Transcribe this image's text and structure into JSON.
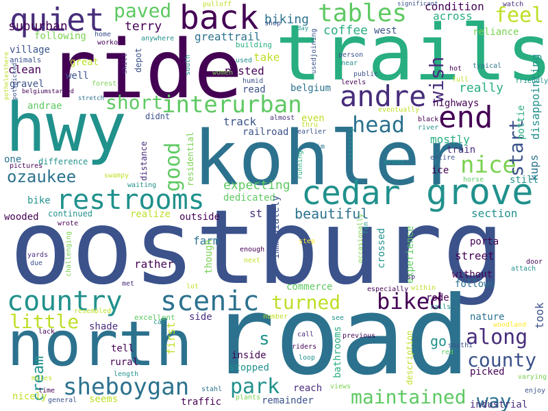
{
  "palette": {
    "c1": "#440154",
    "c2": "#3b528b",
    "c3": "#21918c",
    "c4": "#5ec962",
    "c5": "#2c728e",
    "c6": "#7ad151",
    "c7": "#bddf26",
    "c8": "#28ae80",
    "c9": "#472d7b",
    "c10": "#fde725"
  },
  "words": [
    {
      "text": "oostburg",
      "color": "#3b528b"
    },
    {
      "text": "road",
      "color": "#2c728e"
    },
    {
      "text": "kohler",
      "color": "#2c728e"
    },
    {
      "text": "ride",
      "color": "#440154"
    },
    {
      "text": "trails",
      "color": "#28ae80"
    },
    {
      "text": "hwy",
      "color": "#21918c"
    },
    {
      "text": "north",
      "color": "#2c728e"
    },
    {
      "text": "cedar",
      "color": "#21918c"
    },
    {
      "text": "grove",
      "color": "#21918c"
    },
    {
      "text": "back",
      "color": "#440154"
    },
    {
      "text": "quiet",
      "color": "#472d7b"
    },
    {
      "text": "restrooms",
      "color": "#21918c"
    },
    {
      "text": "scenic",
      "color": "#2c728e"
    },
    {
      "text": "country",
      "color": "#21918c"
    },
    {
      "text": "andre",
      "color": "#472d7b"
    },
    {
      "text": "end",
      "color": "#440154"
    },
    {
      "text": "tables",
      "color": "#5ec962"
    },
    {
      "text": "interurban",
      "color": "#5ec962"
    },
    {
      "text": "sheboygan",
      "color": "#2c728e"
    },
    {
      "text": "park",
      "color": "#21918c"
    },
    {
      "text": "maintained",
      "color": "#5ec962"
    },
    {
      "text": "along",
      "color": "#472d7b"
    },
    {
      "text": "county",
      "color": "#3b528b"
    },
    {
      "text": "head",
      "color": "#2c728e"
    },
    {
      "text": "nice",
      "color": "#7ad151"
    },
    {
      "text": "biked",
      "color": "#440154"
    },
    {
      "text": "turned",
      "color": "#bddf26"
    },
    {
      "text": "little",
      "color": "#bddf26"
    },
    {
      "text": "short",
      "color": "#5ec962"
    },
    {
      "text": "good",
      "color": "#5ec962"
    },
    {
      "text": "start",
      "color": "#3b528b"
    },
    {
      "text": "wish",
      "color": "#472d7b"
    },
    {
      "text": "feel",
      "color": "#bddf26"
    },
    {
      "text": "paved",
      "color": "#5ec962"
    },
    {
      "text": "way",
      "color": "#2c728e"
    },
    {
      "text": "s",
      "color": "#21918c"
    },
    {
      "text": "ozaukee",
      "color": "#2c728e"
    },
    {
      "text": "cream",
      "color": "#21918c"
    },
    {
      "text": "beautiful",
      "color": "#2c728e"
    },
    {
      "text": "expecting",
      "color": "#5ec962"
    },
    {
      "text": "took",
      "color": "#3b528b"
    },
    {
      "text": "go",
      "color": "#21918c"
    },
    {
      "text": "suburban",
      "color": "#440154"
    },
    {
      "text": "terry",
      "color": "#440154"
    },
    {
      "text": "biking",
      "color": "#2c728e"
    },
    {
      "text": "coffee",
      "color": "#28ae80"
    },
    {
      "text": "condition",
      "color": "#440154"
    },
    {
      "text": "across",
      "color": "#28ae80"
    },
    {
      "text": "greattrail",
      "color": "#2c728e"
    },
    {
      "text": "west",
      "color": "#3b528b"
    },
    {
      "text": "reliance",
      "color": "#7ad151"
    },
    {
      "text": "following",
      "color": "#7ad151"
    },
    {
      "text": "village",
      "color": "#3b528b"
    },
    {
      "text": "clean",
      "color": "#440154"
    },
    {
      "text": "gravel",
      "color": "#3b528b"
    },
    {
      "text": "great",
      "color": "#bddf26"
    },
    {
      "text": "well",
      "color": "#3b528b"
    },
    {
      "text": "posted",
      "color": "#440154"
    },
    {
      "text": "take",
      "color": "#bddf26"
    },
    {
      "text": "read",
      "color": "#3b528b"
    },
    {
      "text": "belgium",
      "color": "#2c728e"
    },
    {
      "text": "really",
      "color": "#28ae80"
    },
    {
      "text": "highways",
      "color": "#440154"
    },
    {
      "text": "disappointing",
      "color": "#21918c"
    },
    {
      "text": "andrae",
      "color": "#5ec962"
    },
    {
      "text": "track",
      "color": "#3b528b"
    },
    {
      "text": "railroad",
      "color": "#3b528b"
    },
    {
      "text": "even",
      "color": "#bddf26"
    },
    {
      "text": "mostly",
      "color": "#28ae80"
    },
    {
      "text": "train",
      "color": "#472d7b"
    },
    {
      "text": "kups",
      "color": "#2c728e"
    },
    {
      "text": "pottie",
      "color": "#28ae80"
    },
    {
      "text": "one",
      "color": "#2c728e"
    },
    {
      "text": "difference",
      "color": "#21918c"
    },
    {
      "text": "didnt",
      "color": "#3b528b"
    },
    {
      "text": "distance",
      "color": "#472d7b"
    },
    {
      "text": "residential",
      "color": "#7ad151"
    },
    {
      "text": "ice",
      "color": "#440154"
    },
    {
      "text": "still",
      "color": "#21918c"
    },
    {
      "text": "bike",
      "color": "#21918c"
    },
    {
      "text": "dedicated",
      "color": "#5ec962"
    },
    {
      "text": "realize",
      "color": "#bddf26"
    },
    {
      "text": "section",
      "color": "#21918c"
    },
    {
      "text": "wooded",
      "color": "#440154"
    },
    {
      "text": "continued",
      "color": "#21918c"
    },
    {
      "text": "outside",
      "color": "#440154"
    },
    {
      "text": "st",
      "color": "#472d7b"
    },
    {
      "text": "immediately",
      "color": "#3b528b"
    },
    {
      "text": "crossed",
      "color": "#21918c"
    },
    {
      "text": "experience",
      "color": "#5ec962"
    },
    {
      "text": "porta",
      "color": "#440154"
    },
    {
      "text": "street",
      "color": "#440154"
    },
    {
      "text": "farm",
      "color": "#2c728e"
    },
    {
      "text": "rather",
      "color": "#440154"
    },
    {
      "text": "though",
      "color": "#7ad151"
    },
    {
      "text": "commerce",
      "color": "#5ec962"
    },
    {
      "text": "without",
      "color": "#440154"
    },
    {
      "text": "follows",
      "color": "#2c728e"
    },
    {
      "text": "rode",
      "color": "#440154"
    },
    {
      "text": "nature",
      "color": "#2c728e"
    },
    {
      "text": "shade",
      "color": "#472d7b"
    },
    {
      "text": "side",
      "color": "#472d7b"
    },
    {
      "text": "first",
      "color": "#bddf26"
    },
    {
      "text": "tell",
      "color": "#440154"
    },
    {
      "text": "rural",
      "color": "#440154"
    },
    {
      "text": "inside",
      "color": "#440154"
    },
    {
      "text": "stopped",
      "color": "#21918c"
    },
    {
      "text": "bathrooms",
      "color": "#28ae80"
    },
    {
      "text": "reach",
      "color": "#472d7b"
    },
    {
      "text": "remainder",
      "color": "#3b528b"
    },
    {
      "text": "picked",
      "color": "#440154"
    },
    {
      "text": "industrial",
      "color": "#472d7b"
    },
    {
      "text": "nicely",
      "color": "#bddf26"
    },
    {
      "text": "seems",
      "color": "#bddf26"
    },
    {
      "text": "traffic",
      "color": "#440154"
    },
    {
      "text": "description",
      "color": "#bddf26"
    },
    {
      "text": "excellent",
      "color": "#5ec962"
    },
    {
      "text": "home",
      "color": "#3b528b"
    },
    {
      "text": "workout",
      "color": "#440154"
    },
    {
      "text": "anywhere",
      "color": "#21918c"
    },
    {
      "text": "animals",
      "color": "#3b528b"
    },
    {
      "text": "depot",
      "color": "#3b528b"
    },
    {
      "text": "skill",
      "color": "#472d7b"
    },
    {
      "text": "forest",
      "color": "#7ad151"
    },
    {
      "text": "south",
      "color": "#21918c"
    },
    {
      "text": "women",
      "color": "#7ad151"
    },
    {
      "text": "used",
      "color": "#21918c"
    },
    {
      "text": "humid",
      "color": "#3b528b"
    },
    {
      "text": "building",
      "color": "#28ae80"
    },
    {
      "text": "shop",
      "color": "#3b528b"
    },
    {
      "text": "pulloff",
      "color": "#bddf26"
    },
    {
      "text": "day",
      "color": "#21918c"
    },
    {
      "text": "usedjoining",
      "color": "#3b528b"
    },
    {
      "text": "person",
      "color": "#3b528b"
    },
    {
      "text": "near",
      "color": "#21918c"
    },
    {
      "text": "public",
      "color": "#3b528b"
    },
    {
      "text": "levels",
      "color": "#440154"
    },
    {
      "text": "significant",
      "color": "#3b528b"
    },
    {
      "text": "watch",
      "color": "#472d7b"
    },
    {
      "text": "typical",
      "color": "#2c728e"
    },
    {
      "text": "hot",
      "color": "#440154"
    },
    {
      "text": "full",
      "color": "#bddf26"
    },
    {
      "text": "friendly",
      "color": "#21918c"
    },
    {
      "text": "belgiumstarted",
      "color": "#440154"
    },
    {
      "text": "stretch",
      "color": "#2c728e"
    },
    {
      "text": "pothelesthere",
      "color": "#bddf26"
    },
    {
      "text": "potspicked",
      "color": "#3b528b"
    },
    {
      "text": "pictures",
      "color": "#440154"
    },
    {
      "text": "swampy",
      "color": "#bddf26"
    },
    {
      "text": "waiting",
      "color": "#21918c"
    },
    {
      "text": "almost",
      "color": "#472d7b"
    },
    {
      "text": "thru",
      "color": "#bddf26"
    },
    {
      "text": "earlier",
      "color": "#3b528b"
    },
    {
      "text": "im",
      "color": "#2c728e"
    },
    {
      "text": "strictly",
      "color": "#21918c"
    },
    {
      "text": "running",
      "color": "#28ae80"
    },
    {
      "text": "areas",
      "color": "#21918c"
    },
    {
      "text": "entire",
      "color": "#3b528b"
    },
    {
      "text": "black",
      "color": "#440154"
    },
    {
      "text": "river",
      "color": "#21918c"
    },
    {
      "text": "eventually",
      "color": "#bddf26"
    },
    {
      "text": "horse",
      "color": "#5ec962"
    },
    {
      "text": "wrote",
      "color": "#440154"
    },
    {
      "text": "meadow",
      "color": "#3b528b"
    },
    {
      "text": "challenging",
      "color": "#7ad151"
    },
    {
      "text": "yards",
      "color": "#472d7b"
    },
    {
      "text": "due",
      "color": "#3b528b"
    },
    {
      "text": "met",
      "color": "#472d7b"
    },
    {
      "text": "enough",
      "color": "#440154"
    },
    {
      "text": "next",
      "color": "#bddf26"
    },
    {
      "text": "step",
      "color": "#fde725"
    },
    {
      "text": "fan",
      "color": "#21918c"
    },
    {
      "text": "occasionally",
      "color": "#7ad151"
    },
    {
      "text": "sp",
      "color": "#472d7b"
    },
    {
      "text": "door",
      "color": "#440154"
    },
    {
      "text": "attach",
      "color": "#21918c"
    },
    {
      "text": "lot",
      "color": "#bddf26"
    },
    {
      "text": "especially",
      "color": "#440154"
    },
    {
      "text": "within",
      "color": "#bddf26"
    },
    {
      "text": "rails",
      "color": "#21918c"
    },
    {
      "text": "resembled",
      "color": "#bddf26"
    },
    {
      "text": "car",
      "color": "#21918c"
    },
    {
      "text": "number",
      "color": "#bddf26"
    },
    {
      "text": "see",
      "color": "#21918c"
    },
    {
      "text": "call",
      "color": "#472d7b"
    },
    {
      "text": "riders",
      "color": "#440154"
    },
    {
      "text": "loop",
      "color": "#21918c"
    },
    {
      "text": "previous",
      "color": "#440154"
    },
    {
      "text": "woodland",
      "color": "#fde725"
    },
    {
      "text": "southi",
      "color": "#3b528b"
    },
    {
      "text": "red",
      "color": "#5ec962"
    },
    {
      "text": "lack",
      "color": "#440154"
    },
    {
      "text": "miles",
      "color": "#bddf26"
    },
    {
      "text": "time",
      "color": "#440154"
    },
    {
      "text": "general",
      "color": "#3b528b"
    },
    {
      "text": "length",
      "color": "#21918c"
    },
    {
      "text": "stahl",
      "color": "#2c728e"
    },
    {
      "text": "plants",
      "color": "#7ad151"
    },
    {
      "text": "views",
      "color": "#7ad151"
    },
    {
      "text": "varying",
      "color": "#7ad151"
    },
    {
      "text": "enjoy",
      "color": "#3b528b"
    }
  ]
}
